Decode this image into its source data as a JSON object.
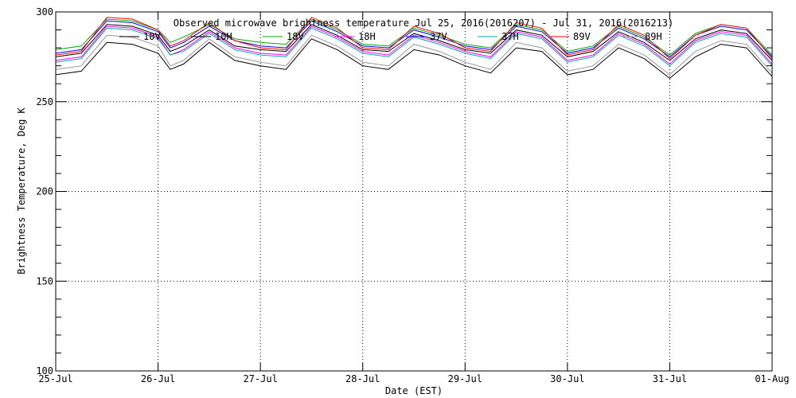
{
  "chart_data": {
    "type": "line",
    "title": "Observed microwave brightness temperature Jul 25, 2016(2016207) - Jul 31, 2016(2016213)",
    "xlabel": "Date (EST)",
    "ylabel": "Brightness Temperature, Deg K",
    "ylim": [
      100,
      300
    ],
    "xlim": [
      0,
      7
    ],
    "x_ticks": [
      "25-Jul",
      "26-Jul",
      "27-Jul",
      "28-Jul",
      "29-Jul",
      "30-Jul",
      "31-Jul",
      "01-Aug"
    ],
    "y_ticks": [
      100,
      150,
      200,
      250,
      300
    ],
    "grid": true,
    "legend_position": "top",
    "x": [
      0.0,
      0.25,
      0.5,
      0.75,
      1.0,
      1.12,
      1.25,
      1.5,
      1.75,
      2.0,
      2.25,
      2.5,
      2.75,
      3.0,
      3.25,
      3.5,
      3.75,
      4.0,
      4.25,
      4.5,
      4.75,
      5.0,
      5.25,
      5.5,
      5.75,
      6.0,
      6.25,
      6.5,
      6.75,
      7.0
    ],
    "series": [
      {
        "name": "10V",
        "color": "#000000",
        "values": [
          275,
          277,
          293,
          292,
          287,
          278,
          281,
          290,
          281,
          279,
          278,
          293,
          287,
          279,
          278,
          288,
          284,
          279,
          277,
          290,
          287,
          275,
          278,
          289,
          283,
          273,
          285,
          290,
          288,
          273
        ]
      },
      {
        "name": "10H",
        "color": "#000000",
        "values": [
          265,
          267,
          283,
          282,
          277,
          268,
          271,
          283,
          273,
          270,
          268,
          285,
          279,
          270,
          268,
          279,
          276,
          270,
          266,
          280,
          278,
          265,
          268,
          280,
          274,
          263,
          275,
          282,
          280,
          264
        ]
      },
      {
        "name": "18V",
        "color": "#00aa00",
        "values": [
          279,
          281,
          296,
          295,
          290,
          283,
          286,
          293,
          285,
          283,
          282,
          296,
          290,
          282,
          281,
          291,
          287,
          282,
          280,
          293,
          290,
          278,
          281,
          292,
          286,
          276,
          288,
          293,
          291,
          276
        ]
      },
      {
        "name": "18H",
        "color": "#ff00ff",
        "values": [
          273,
          275,
          292,
          291,
          286,
          276,
          279,
          289,
          280,
          277,
          276,
          292,
          286,
          278,
          276,
          287,
          283,
          278,
          275,
          289,
          286,
          273,
          276,
          288,
          282,
          271,
          284,
          289,
          287,
          271
        ]
      },
      {
        "name": "37V",
        "color": "#0000ff",
        "values": [
          277,
          279,
          295,
          294,
          289,
          280,
          283,
          292,
          284,
          281,
          280,
          295,
          289,
          281,
          280,
          290,
          286,
          281,
          279,
          292,
          289,
          277,
          280,
          291,
          285,
          275,
          287,
          292,
          290,
          275
        ]
      },
      {
        "name": "37H",
        "color": "#00aaaa",
        "values": [
          272,
          274,
          291,
          290,
          285,
          276,
          278,
          288,
          279,
          276,
          275,
          291,
          285,
          277,
          275,
          286,
          282,
          277,
          274,
          288,
          285,
          272,
          275,
          287,
          281,
          270,
          283,
          288,
          286,
          270
        ]
      },
      {
        "name": "89V",
        "color": "#ff0000",
        "values": [
          276,
          278,
          297,
          296,
          290,
          281,
          284,
          294,
          284,
          280,
          279,
          297,
          291,
          280,
          279,
          292,
          288,
          280,
          278,
          294,
          291,
          276,
          279,
          293,
          287,
          274,
          287,
          293,
          291,
          274
        ]
      },
      {
        "name": "89H",
        "color": "#999999",
        "values": [
          268,
          270,
          287,
          286,
          281,
          270,
          273,
          285,
          275,
          272,
          270,
          287,
          281,
          272,
          270,
          282,
          278,
          272,
          268,
          283,
          280,
          267,
          270,
          282,
          276,
          265,
          278,
          284,
          282,
          266
        ]
      }
    ]
  }
}
